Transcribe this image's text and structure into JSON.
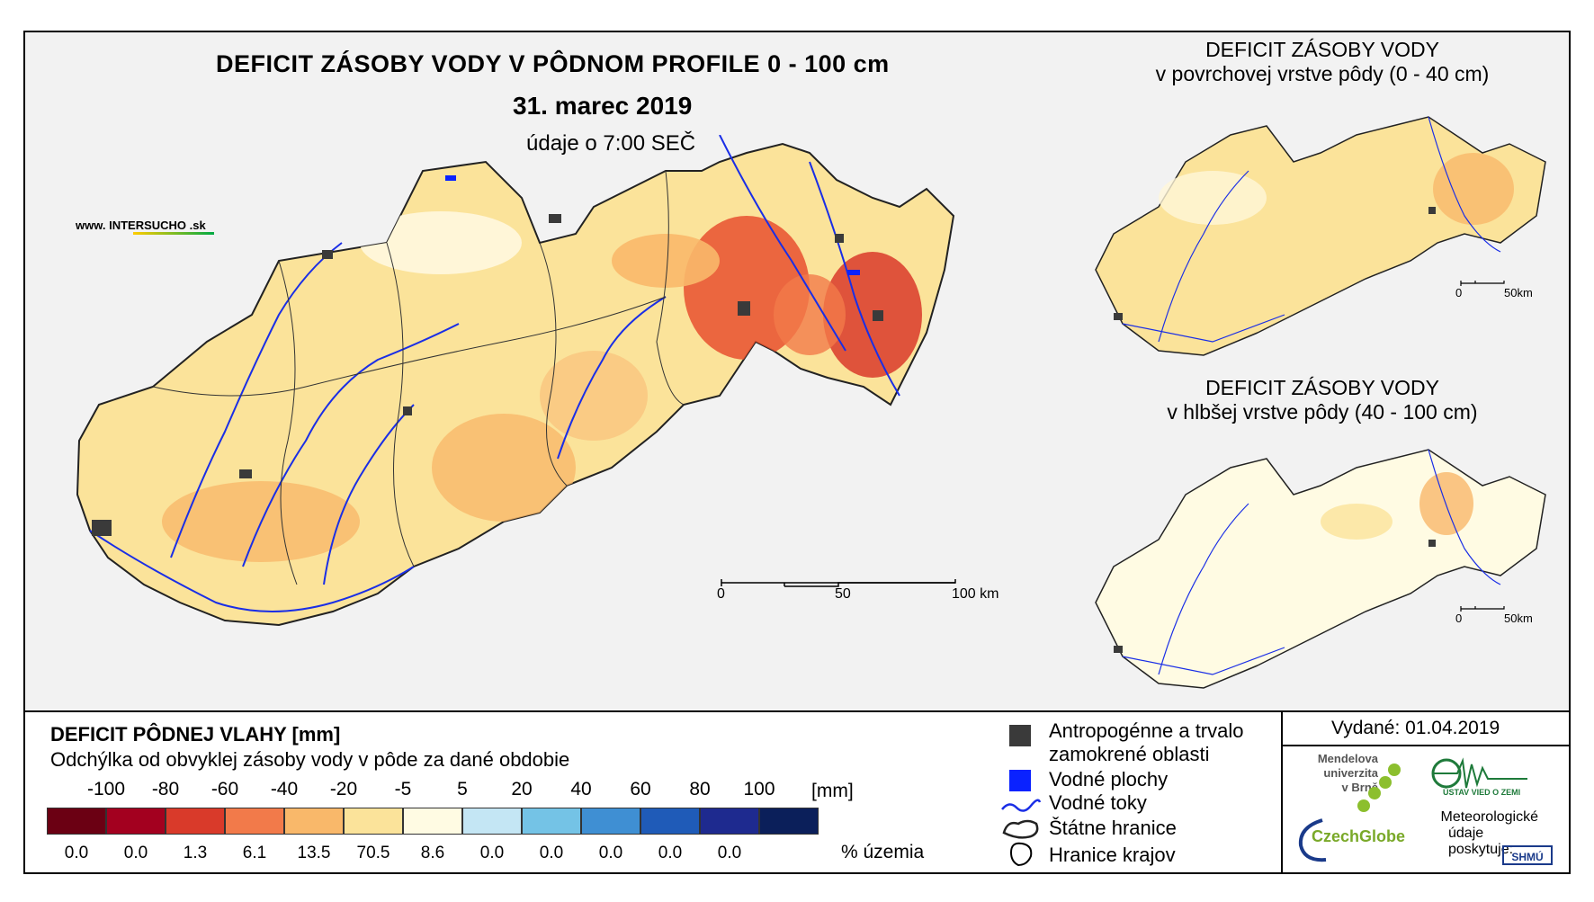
{
  "main_title": "DEFICIT ZÁSOBY VODY V PÔDNOM PROFILE 0 - 100 cm",
  "date": "31. marec 2019",
  "time_note": "údaje o 7:00 SEČ",
  "website": {
    "prefix": "www.",
    "brand": "INTERSUCHO",
    "suffix": ".sk"
  },
  "inset_top": {
    "title_line1": "DEFICIT ZÁSOBY VODY",
    "title_line2": "v povrchovej vrstve pôdy (0 - 40 cm)",
    "scale": [
      "0",
      "50km"
    ]
  },
  "inset_bottom": {
    "title_line1": "DEFICIT ZÁSOBY VODY",
    "title_line2": "v hlbšej vrstve pôdy (40 - 100 cm)",
    "scale": [
      "0",
      "50km"
    ]
  },
  "main_scale": [
    "0",
    "50",
    "100 km"
  ],
  "legend": {
    "title": "DEFICIT PÔDNEJ VLAHY [mm]",
    "subtitle": "Odchýlka od obvyklej zásoby vody v pôde za dané obdobie",
    "unit": "[mm]",
    "pct_unit": "% územia",
    "boundaries": [
      "-100",
      "-80",
      "-60",
      "-40",
      "-20",
      "-5",
      "5",
      "20",
      "40",
      "60",
      "80",
      "100"
    ],
    "classes": [
      {
        "color": "#6b0013",
        "pct": "0.0"
      },
      {
        "color": "#a3001f",
        "pct": "0.0"
      },
      {
        "color": "#d93a2a",
        "pct": "1.3"
      },
      {
        "color": "#f27a4a",
        "pct": "6.1"
      },
      {
        "color": "#f9b86a",
        "pct": "13.5"
      },
      {
        "color": "#fbe39a",
        "pct": "70.5"
      },
      {
        "color": "#fffbe3",
        "pct": "8.6"
      },
      {
        "color": "#c4e6f4",
        "pct": "0.0"
      },
      {
        "color": "#74c3e6",
        "pct": "0.0"
      },
      {
        "color": "#3f8fd3",
        "pct": "0.0"
      },
      {
        "color": "#1f5bb8",
        "pct": "0.0"
      },
      {
        "color": "#1e2a8f",
        "pct": "0.0"
      },
      {
        "color": "#0b1f5a",
        "pct": ""
      }
    ]
  },
  "key": [
    {
      "label": "Antropogénne a trvalo",
      "label2": "zamokrené oblasti",
      "symbol": "anthropogenic"
    },
    {
      "label": "Vodné plochy",
      "symbol": "water-area"
    },
    {
      "label": "Vodné toky",
      "symbol": "river"
    },
    {
      "label": "Štátne hranice",
      "symbol": "state-border"
    },
    {
      "label": "Hranice krajov",
      "symbol": "region-border"
    }
  ],
  "issued": "Vydané: 01.04.2019",
  "logos": {
    "mendel": [
      "Mendelova",
      "univerzita",
      "v Brně"
    ],
    "czechglobe": "CzechGlobe",
    "uvz": "ÚSTAV VIED O ZEMI",
    "met_note": [
      "Meteorologické",
      "údaje",
      "poskytuje:"
    ],
    "shmu": "SHMÚ"
  },
  "colors": {
    "background": "#f2f2f2",
    "river": "#1a2ee6",
    "anthropogenic": "#3a3a3a"
  }
}
